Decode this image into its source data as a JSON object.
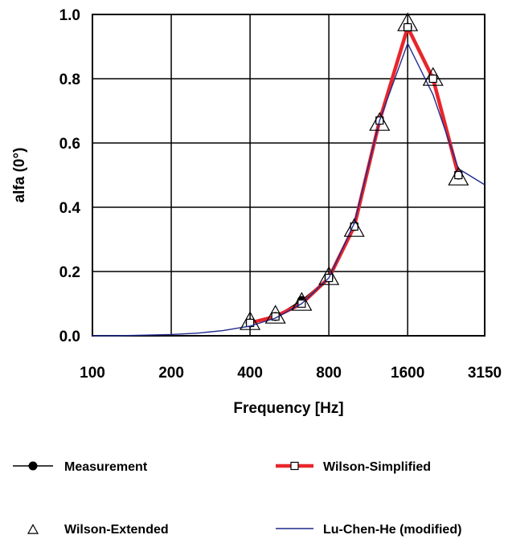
{
  "chart_data": {
    "type": "line",
    "xlabel": "Frequency [Hz]",
    "ylabel": "alfa (0°)",
    "x_scale": "log",
    "xlim": [
      100,
      3150
    ],
    "ylim": [
      0,
      1
    ],
    "x_ticks": [
      100,
      200,
      400,
      800,
      1600,
      3150
    ],
    "x_tick_labels": [
      "100",
      "200",
      "400",
      "800",
      "1600",
      "3150"
    ],
    "y_ticks": [
      0,
      0.2,
      0.4,
      0.6,
      0.8,
      1.0
    ],
    "y_tick_labels": [
      "0.0",
      "0.2",
      "0.4",
      "0.6",
      "0.8",
      "1.0"
    ],
    "grid": true,
    "legend_position": "bottom",
    "series": [
      {
        "name": "Measurement",
        "style": "line-filled-circle",
        "color": "#000000",
        "x": [
          400,
          500,
          630,
          800,
          1000,
          1250,
          1600,
          2000,
          2500
        ],
        "y": [
          0.04,
          0.06,
          0.11,
          0.18,
          0.34,
          0.67,
          0.96,
          0.8,
          0.5
        ]
      },
      {
        "name": "Wilson-Simplified",
        "style": "thick-line-open-square",
        "color": "#e8262b",
        "x": [
          400,
          500,
          630,
          800,
          1000,
          1250,
          1600,
          2000,
          2500
        ],
        "y": [
          0.04,
          0.06,
          0.1,
          0.18,
          0.34,
          0.67,
          0.96,
          0.8,
          0.5
        ]
      },
      {
        "name": "Wilson-Extended",
        "style": "open-triangle",
        "color": "#000000",
        "x": [
          400,
          500,
          630,
          800,
          1000,
          1250,
          1600,
          2000,
          2500
        ],
        "y": [
          0.04,
          0.06,
          0.1,
          0.18,
          0.33,
          0.66,
          0.97,
          0.8,
          0.49
        ]
      },
      {
        "name": "Lu-Chen-He (modified)",
        "style": "thin-line",
        "color": "#1f2a8c",
        "x": [
          100,
          125,
          160,
          200,
          250,
          315,
          400,
          500,
          630,
          800,
          1000,
          1250,
          1600,
          2000,
          2500,
          3150
        ],
        "y": [
          0.0,
          0.0,
          0.002,
          0.004,
          0.008,
          0.016,
          0.03,
          0.055,
          0.1,
          0.18,
          0.35,
          0.67,
          0.91,
          0.75,
          0.52,
          0.47
        ]
      }
    ]
  }
}
